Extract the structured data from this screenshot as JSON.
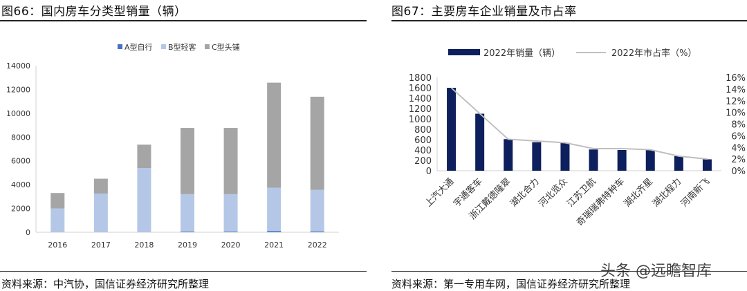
{
  "left": {
    "title": "图66：国内房车分类型销量（辆）",
    "source": "资料来源：中汽协，国信证券经济研究所整理"
  },
  "right": {
    "title": "图67：主要房车企业销量及市占率",
    "source": "资料来源：第一专用车网，国信证券经济研究所整理"
  },
  "watermark": "头条 @远瞻智库",
  "chart_data": [
    {
      "type": "bar",
      "stacked": true,
      "categories": [
        "2016",
        "2017",
        "2018",
        "2019",
        "2020",
        "2021",
        "2022"
      ],
      "series": [
        {
          "name": "A型自行",
          "color": "#4472c4",
          "values": [
            0,
            0,
            0,
            50,
            50,
            100,
            60
          ]
        },
        {
          "name": "B型轻客",
          "color": "#b4c7e7",
          "values": [
            2000,
            3250,
            5400,
            3150,
            3150,
            3640,
            3500
          ]
        },
        {
          "name": "C型头铺",
          "color": "#a5a5a5",
          "values": [
            1300,
            1250,
            1960,
            5570,
            5570,
            8830,
            7830
          ]
        }
      ],
      "ylim": [
        0,
        14000
      ],
      "yticks": [
        "0",
        "2000",
        "4000",
        "6000",
        "8000",
        "10000",
        "12000",
        "14000"
      ],
      "legend": "top",
      "grid": false
    },
    {
      "type": "bar+line",
      "categories": [
        "上汽大通",
        "宇通客车",
        "浙江戴德隆翠",
        "湖北合力",
        "河北览众",
        "江苏卫航",
        "奇瑞瑞弗特种车",
        "湖北齐星",
        "湖北程力",
        "河南新飞"
      ],
      "series": [
        {
          "name": "2022年销量（辆）",
          "type": "bar",
          "axis": "left",
          "color": "#0d1f5c",
          "values": [
            1600,
            1100,
            610,
            550,
            540,
            410,
            400,
            400,
            280,
            220
          ]
        },
        {
          "name": "2022年市占率（%）",
          "type": "line",
          "axis": "right",
          "color": "#bfbfbf",
          "values": [
            14.2,
            9.8,
            5.4,
            5.1,
            4.8,
            3.8,
            3.8,
            3.6,
            2.5,
            2.0
          ]
        }
      ],
      "ylim": [
        0,
        1800
      ],
      "yticks": [
        "0",
        "200",
        "400",
        "600",
        "800",
        "1000",
        "1200",
        "1400",
        "1600",
        "1800"
      ],
      "y2lim": [
        0,
        16
      ],
      "y2ticks": [
        "0%",
        "2%",
        "4%",
        "6%",
        "8%",
        "10%",
        "12%",
        "14%",
        "16%"
      ],
      "legend": "top",
      "grid": false
    }
  ]
}
